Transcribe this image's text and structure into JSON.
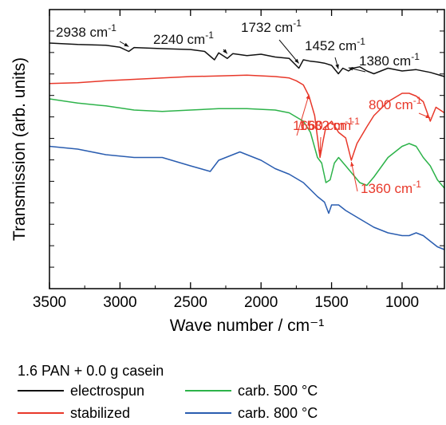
{
  "chart_data": {
    "type": "line",
    "title": "",
    "xlabel": "Wave number / cm⁻¹",
    "ylabel": "Transmission (arb. units)",
    "xlim": [
      3500,
      700
    ],
    "x_reversed": true,
    "x_ticks": [
      "3500",
      "3000",
      "2500",
      "2000",
      "1500",
      "1000"
    ],
    "y_ticks_labeled": false,
    "grid": false,
    "legend_title": "1.6 PAN + 0.0 g casein",
    "legend_position": "bottom",
    "series": [
      {
        "name": "electrospun",
        "color": "#111111",
        "x": [
          3500,
          3300,
          3100,
          3000,
          2938,
          2900,
          2700,
          2500,
          2400,
          2330,
          2300,
          2240,
          2200,
          2100,
          2000,
          1900,
          1800,
          1732,
          1700,
          1650,
          1600,
          1550,
          1500,
          1452,
          1420,
          1380,
          1350,
          1300,
          1250,
          1200,
          1100,
          1000,
          900,
          800,
          700
        ],
        "y": [
          0.88,
          0.875,
          0.872,
          0.865,
          0.85,
          0.864,
          0.86,
          0.857,
          0.85,
          0.82,
          0.845,
          0.825,
          0.842,
          0.835,
          0.84,
          0.83,
          0.825,
          0.79,
          0.82,
          0.815,
          0.812,
          0.808,
          0.8,
          0.77,
          0.79,
          0.78,
          0.79,
          0.795,
          0.78,
          0.77,
          0.79,
          0.78,
          0.785,
          0.775,
          0.76
        ]
      },
      {
        "name": "stabilized",
        "color": "#e8382a",
        "x": [
          3500,
          3300,
          3100,
          2900,
          2700,
          2500,
          2300,
          2100,
          1900,
          1800,
          1750,
          1700,
          1660,
          1620,
          1582,
          1560,
          1540,
          1500,
          1450,
          1400,
          1360,
          1320,
          1250,
          1200,
          1100,
          1000,
          950,
          900,
          850,
          800,
          760,
          730,
          700
        ],
        "y": [
          0.735,
          0.738,
          0.745,
          0.75,
          0.755,
          0.76,
          0.762,
          0.765,
          0.76,
          0.755,
          0.745,
          0.73,
          0.69,
          0.62,
          0.47,
          0.53,
          0.58,
          0.6,
          0.56,
          0.54,
          0.46,
          0.52,
          0.58,
          0.62,
          0.67,
          0.7,
          0.7,
          0.69,
          0.67,
          0.6,
          0.65,
          0.64,
          0.63
        ]
      },
      {
        "name": "carb. 500 °C",
        "color": "#2db34a",
        "x": [
          3500,
          3300,
          3100,
          2900,
          2700,
          2500,
          2300,
          2100,
          1900,
          1800,
          1700,
          1650,
          1600,
          1570,
          1540,
          1510,
          1480,
          1450,
          1400,
          1350,
          1300,
          1250,
          1200,
          1100,
          1000,
          950,
          900,
          850,
          800,
          750,
          700
        ],
        "y": [
          0.68,
          0.665,
          0.655,
          0.64,
          0.635,
          0.64,
          0.645,
          0.645,
          0.64,
          0.63,
          0.6,
          0.56,
          0.47,
          0.45,
          0.38,
          0.39,
          0.45,
          0.47,
          0.44,
          0.41,
          0.38,
          0.37,
          0.4,
          0.47,
          0.51,
          0.52,
          0.51,
          0.47,
          0.44,
          0.39,
          0.36
        ]
      },
      {
        "name": "carb. 800 °C",
        "color": "#2a5db0",
        "x": [
          3500,
          3300,
          3100,
          2900,
          2700,
          2500,
          2360,
          2300,
          2200,
          2150,
          2100,
          2000,
          1900,
          1800,
          1700,
          1600,
          1550,
          1520,
          1500,
          1450,
          1400,
          1300,
          1200,
          1100,
          1000,
          950,
          900,
          850,
          800,
          750,
          700
        ],
        "y": [
          0.51,
          0.5,
          0.48,
          0.47,
          0.47,
          0.44,
          0.42,
          0.46,
          0.48,
          0.49,
          0.48,
          0.46,
          0.43,
          0.41,
          0.38,
          0.33,
          0.31,
          0.27,
          0.3,
          0.3,
          0.28,
          0.25,
          0.22,
          0.2,
          0.19,
          0.19,
          0.2,
          0.19,
          0.17,
          0.15,
          0.14
        ]
      }
    ],
    "annotations": [
      {
        "text": "2938 cm",
        "sup": "-1",
        "color": "#111111",
        "x": 2938,
        "series": 0
      },
      {
        "text": "2240 cm",
        "sup": "-1",
        "color": "#111111",
        "x": 2240,
        "series": 0
      },
      {
        "text": "1732 cm",
        "sup": "-1",
        "color": "#111111",
        "x": 1732,
        "series": 0
      },
      {
        "text": "1452 cm",
        "sup": "-1",
        "color": "#111111",
        "x": 1452,
        "series": 0
      },
      {
        "text": "1380 cm",
        "sup": "-1",
        "color": "#111111",
        "x": 1380,
        "series": 0
      },
      {
        "text": "1660 cm",
        "sup": "-1",
        "color": "#e8382a",
        "x": 1660,
        "series": 1
      },
      {
        "text": "1582 cm",
        "sup": "-1",
        "color": "#e8382a",
        "x": 1582,
        "series": 1
      },
      {
        "text": "800 cm",
        "sup": "-1",
        "color": "#e8382a",
        "x": 800,
        "series": 1
      },
      {
        "text": "1360 cm",
        "sup": "-1",
        "color": "#e8382a",
        "x": 1360,
        "series": 1
      }
    ]
  }
}
